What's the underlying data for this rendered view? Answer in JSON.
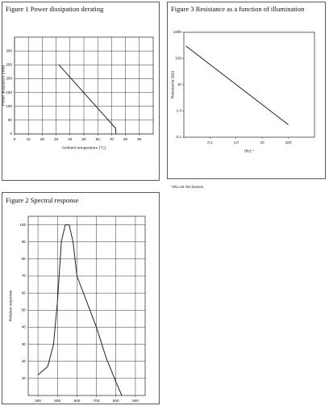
{
  "chart_data": [
    {
      "type": "line",
      "title": "Figure 1  Power dissipation derating",
      "xlabel": "Ambient temperature (°C)",
      "ylabel": "Power dissipation (mW)",
      "x": [
        32,
        73,
        73
      ],
      "values": [
        250,
        20,
        0
      ],
      "color": "#222222",
      "xlim": [
        0,
        100
      ],
      "xticks": [
        0,
        10,
        20,
        30,
        40,
        50,
        60,
        70,
        80,
        90
      ],
      "ylim": [
        0,
        350
      ],
      "yticks": [
        0,
        50,
        100,
        150,
        200,
        250,
        300
      ],
      "grid": true,
      "xlog": false,
      "ylog": false
    },
    {
      "type": "line",
      "title": "Figure 3  Resistance as a function of illumination",
      "xlabel": "(ftc) *",
      "ylabel": "Resistance (kΩ)",
      "note": "*1ftc=10.764 lumens",
      "x": [
        0.012,
        100
      ],
      "values": [
        300,
        0.3
      ],
      "color": "#222222",
      "xlim": [
        0.01,
        1000
      ],
      "xticks": [
        0.1,
        {
          "value": 1,
          "label": "1.0"
        },
        10,
        100
      ],
      "ylim": [
        0.1,
        1000
      ],
      "yticks": [
        0.1,
        {
          "value": 1,
          "label": "1.0"
        },
        10,
        100,
        1000
      ],
      "grid": false,
      "xlog": true,
      "ylog": true
    },
    {
      "type": "line",
      "title": "Figure 2  Spectral response",
      "ylabel": "Relative response",
      "x": [
        400,
        450,
        480,
        500,
        520,
        540,
        560,
        580,
        600,
        650,
        700,
        750,
        800,
        830
      ],
      "values": [
        12,
        17,
        30,
        55,
        90,
        100,
        100,
        90,
        70,
        55,
        40,
        22,
        8,
        0
      ],
      "color": "#222222",
      "xlim": [
        350,
        950
      ],
      "xticks": [
        400,
        500,
        600,
        700,
        800,
        900
      ],
      "ylim": [
        0,
        105
      ],
      "yticks": [
        10,
        20,
        30,
        40,
        50,
        60,
        70,
        80,
        90,
        100
      ],
      "grid": true,
      "xlog": false,
      "ylog": false
    }
  ]
}
